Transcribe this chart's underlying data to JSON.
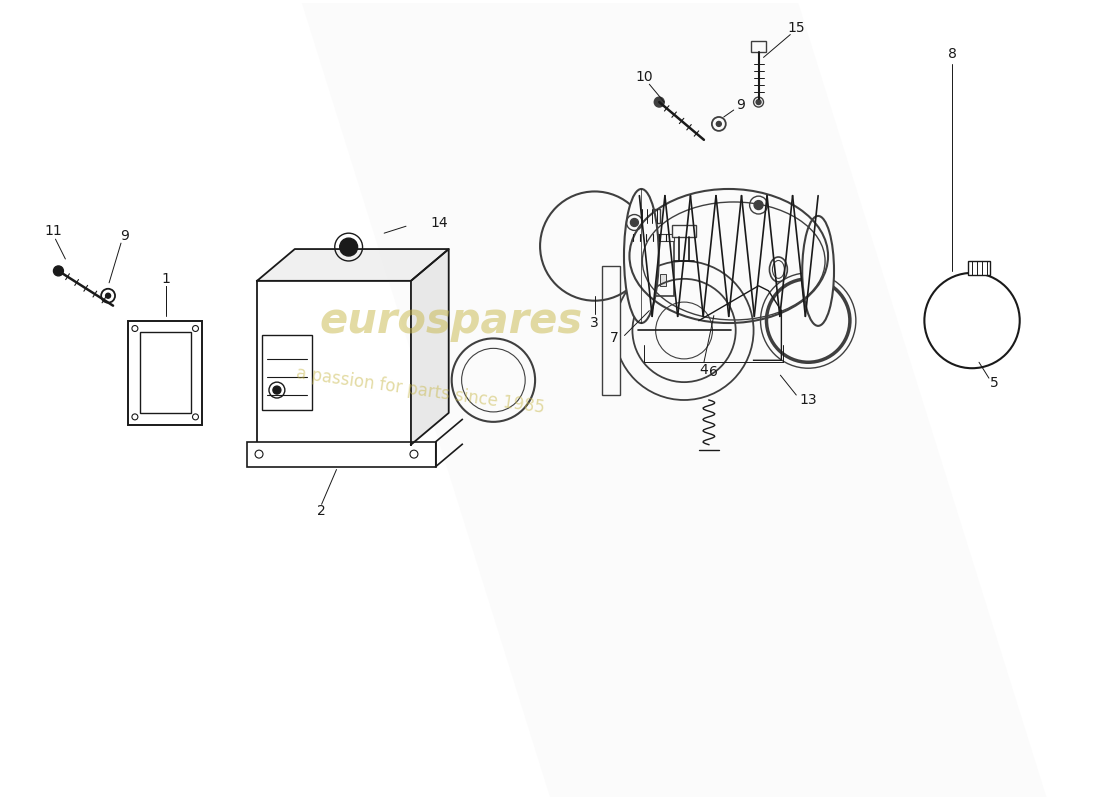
{
  "background_color": "#ffffff",
  "line_color": "#1a1a1a",
  "watermark_text1": "eurospares",
  "watermark_text2": "a passion for parts since 1985",
  "watermark_color": "#c8b84a"
}
